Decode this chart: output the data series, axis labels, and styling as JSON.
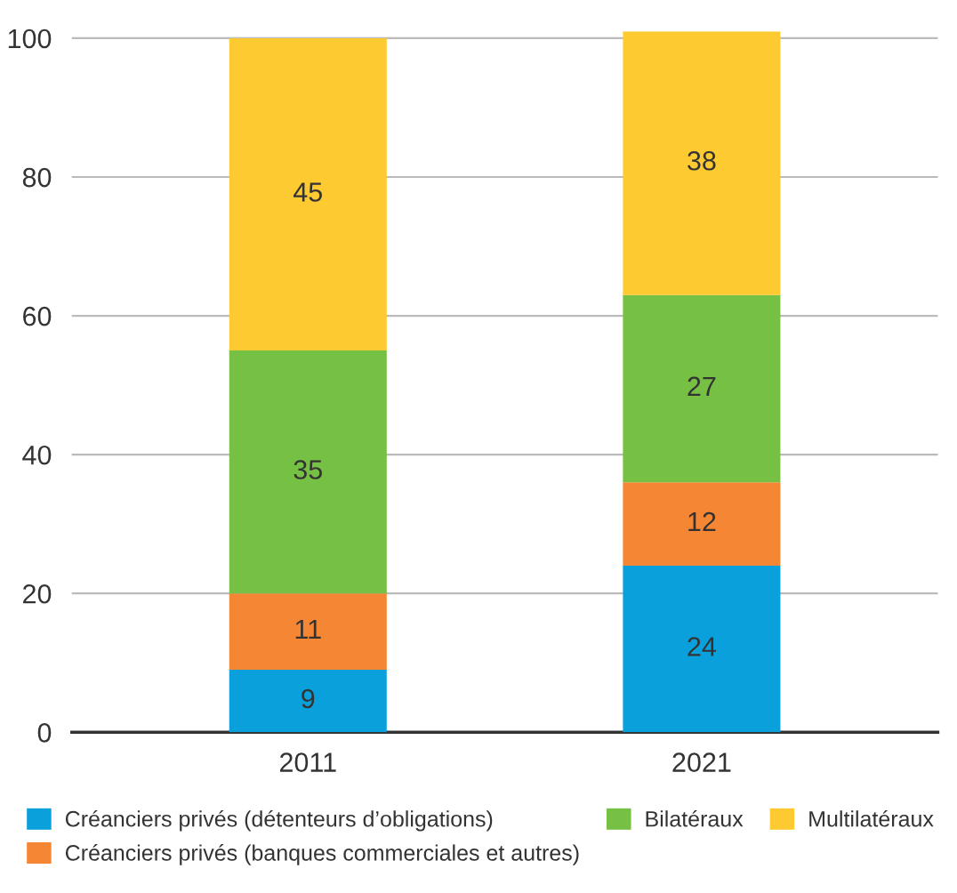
{
  "chart_data": {
    "type": "bar",
    "stacked": true,
    "categories": [
      "2011",
      "2021"
    ],
    "series": [
      {
        "name": "Créanciers privés (détenteurs d’obligations)",
        "color": "#0aa0dc",
        "values": [
          9,
          24
        ]
      },
      {
        "name": "Créanciers privés (banques commerciales et autres)",
        "color": "#f58634",
        "values": [
          11,
          12
        ]
      },
      {
        "name": "Bilatéraux",
        "color": "#76c044",
        "values": [
          35,
          27
        ]
      },
      {
        "name": "Multilatéraux",
        "color": "#fdcb31",
        "values": [
          45,
          38
        ]
      }
    ],
    "ylim": [
      0,
      101
    ],
    "yticks": [
      0,
      20,
      40,
      60,
      80,
      100
    ],
    "grid": "y",
    "legend": "bottom",
    "data_labels": true
  }
}
